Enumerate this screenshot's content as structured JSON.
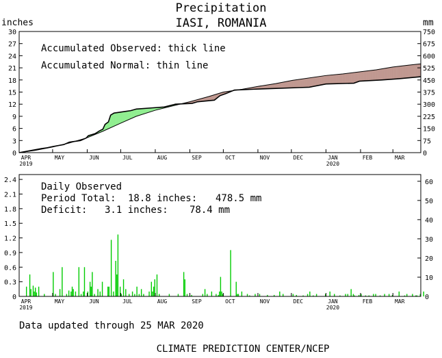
{
  "header": {
    "title": "Precipitation",
    "location": "IASI, ROMANIA",
    "unit_left": "inches",
    "unit_right": "mm"
  },
  "colors": {
    "surplus_fill": "#90ee90",
    "deficit_fill": "#c09890",
    "daily_bar": "#00cc00",
    "line": "#000000"
  },
  "footer": {
    "updated": "Data updated through 25 MAR 2020",
    "credit": "CLIMATE PREDICTION CENTER/NCEP"
  },
  "chart_data": [
    {
      "type": "area",
      "legend": [
        "Accumulated Observed: thick line",
        "Accumulated Normal: thin line"
      ],
      "ylim": [
        0,
        30
      ],
      "y_ticks": [
        "0",
        "3",
        "6",
        "9",
        "12",
        "15",
        "18",
        "21",
        "24",
        "27",
        "30"
      ],
      "y2lim": [
        0,
        750
      ],
      "y2_ticks": [
        "0",
        "75",
        "150",
        "225",
        "300",
        "375",
        "450",
        "525",
        "600",
        "675",
        "750"
      ],
      "x_months": [
        "APR",
        "MAY",
        "JUN",
        "JUL",
        "AUG",
        "SEP",
        "OCT",
        "NOV",
        "DEC",
        "JAN",
        "FEB",
        "MAR"
      ],
      "x_years": {
        "APR": "2019",
        "JAN": "2020"
      },
      "x_unit": "day index from APR 1 2019",
      "series": [
        {
          "name": "Accumulated Observed",
          "points": [
            [
              0,
              0.0
            ],
            [
              10,
              0.5
            ],
            [
              20,
              1.0
            ],
            [
              25,
              1.2
            ],
            [
              30,
              1.5
            ],
            [
              40,
              2.0
            ],
            [
              45,
              2.6
            ],
            [
              55,
              3.0
            ],
            [
              60,
              3.6
            ],
            [
              62,
              4.2
            ],
            [
              68,
              4.7
            ],
            [
              72,
              5.4
            ],
            [
              75,
              5.8
            ],
            [
              77,
              7.0
            ],
            [
              80,
              7.6
            ],
            [
              82,
              9.3
            ],
            [
              85,
              9.8
            ],
            [
              95,
              10.2
            ],
            [
              100,
              10.4
            ],
            [
              105,
              10.8
            ],
            [
              120,
              11.1
            ],
            [
              130,
              11.3
            ],
            [
              140,
              12.0
            ],
            [
              155,
              12.2
            ],
            [
              160,
              12.6
            ],
            [
              175,
              13.0
            ],
            [
              180,
              14.1
            ],
            [
              185,
              14.6
            ],
            [
              193,
              15.5
            ],
            [
              210,
              15.7
            ],
            [
              230,
              15.9
            ],
            [
              250,
              16.1
            ],
            [
              260,
              16.2
            ],
            [
              275,
              17.0
            ],
            [
              300,
              17.2
            ],
            [
              305,
              17.7
            ],
            [
              325,
              18.0
            ],
            [
              340,
              18.3
            ],
            [
              360,
              18.8
            ]
          ]
        },
        {
          "name": "Accumulated Normal",
          "points": [
            [
              0,
              0.0
            ],
            [
              15,
              0.6
            ],
            [
              30,
              1.4
            ],
            [
              45,
              2.4
            ],
            [
              60,
              3.6
            ],
            [
              75,
              5.3
            ],
            [
              91,
              7.3
            ],
            [
              105,
              9.0
            ],
            [
              122,
              10.5
            ],
            [
              135,
              11.4
            ],
            [
              153,
              12.6
            ],
            [
              170,
              13.9
            ],
            [
              183,
              15.0
            ],
            [
              200,
              15.7
            ],
            [
              214,
              16.4
            ],
            [
              230,
              17.1
            ],
            [
              245,
              17.9
            ],
            [
              275,
              19.1
            ],
            [
              290,
              19.5
            ],
            [
              305,
              20.0
            ],
            [
              320,
              20.5
            ],
            [
              335,
              21.2
            ],
            [
              350,
              21.7
            ],
            [
              360,
              22.0
            ]
          ]
        }
      ]
    },
    {
      "type": "bar",
      "series_label": "Daily Observed",
      "period_total": {
        "label": "Period Total:",
        "inches": "18.8 inches:",
        "mm": "478.5 mm"
      },
      "deficit": {
        "label": "Deficit:",
        "inches": "3.1 inches:",
        "mm": "78.4 mm"
      },
      "ylim": [
        0,
        2.5
      ],
      "y_ticks": [
        "0",
        "0.3",
        "0.6",
        "0.9",
        "1.2",
        "1.5",
        "1.8",
        "2.1",
        "2.4"
      ],
      "y2lim": [
        0,
        63.5
      ],
      "y2_ticks": [
        "0",
        "10",
        "20",
        "30",
        "40",
        "50",
        "60"
      ],
      "x_months": [
        "APR",
        "MAY",
        "JUN",
        "JUL",
        "AUG",
        "SEP",
        "OCT",
        "NOV",
        "DEC",
        "JAN",
        "FEB",
        "MAR"
      ],
      "x_years": {
        "APR": "2019",
        "JAN": "2020"
      },
      "x_unit": "day index from APR 1 2019",
      "values": [
        [
          6,
          0.2
        ],
        [
          9,
          0.45
        ],
        [
          10,
          0.15
        ],
        [
          12,
          0.22
        ],
        [
          13,
          0.1
        ],
        [
          14,
          0.18
        ],
        [
          15,
          0.08
        ],
        [
          17,
          0.2
        ],
        [
          22,
          0.05
        ],
        [
          30,
          0.5
        ],
        [
          32,
          0.05
        ],
        [
          36,
          0.15
        ],
        [
          38,
          0.6
        ],
        [
          42,
          0.05
        ],
        [
          44,
          0.12
        ],
        [
          46,
          0.1
        ],
        [
          47,
          0.2
        ],
        [
          48,
          0.15
        ],
        [
          50,
          0.1
        ],
        [
          53,
          0.6
        ],
        [
          55,
          0.05
        ],
        [
          57,
          0.1
        ],
        [
          58,
          0.6
        ],
        [
          61,
          0.1
        ],
        [
          63,
          0.3
        ],
        [
          64,
          0.2
        ],
        [
          65,
          0.5
        ],
        [
          67,
          0.05
        ],
        [
          70,
          0.15
        ],
        [
          72,
          0.1
        ],
        [
          74,
          0.3
        ],
        [
          79,
          0.2
        ],
        [
          80,
          0.2
        ],
        [
          82,
          1.16
        ],
        [
          84,
          0.1
        ],
        [
          86,
          0.73
        ],
        [
          87,
          0.45
        ],
        [
          88,
          1.27
        ],
        [
          90,
          0.2
        ],
        [
          91,
          0.05
        ],
        [
          93,
          0.35
        ],
        [
          95,
          0.15
        ],
        [
          98,
          0.05
        ],
        [
          101,
          0.1
        ],
        [
          103,
          0.05
        ],
        [
          105,
          0.2
        ],
        [
          107,
          0.05
        ],
        [
          109,
          0.15
        ],
        [
          111,
          0.05
        ],
        [
          116,
          0.1
        ],
        [
          118,
          0.3
        ],
        [
          119,
          0.1
        ],
        [
          120,
          0.2
        ],
        [
          121,
          0.35
        ],
        [
          123,
          0.45
        ],
        [
          125,
          0.05
        ],
        [
          134,
          0.05
        ],
        [
          142,
          0.05
        ],
        [
          147,
          0.5
        ],
        [
          148,
          0.35
        ],
        [
          150,
          0.05
        ],
        [
          154,
          0.03
        ],
        [
          164,
          0.05
        ],
        [
          166,
          0.15
        ],
        [
          168,
          0.05
        ],
        [
          172,
          0.1
        ],
        [
          176,
          0.05
        ],
        [
          178,
          0.03
        ],
        [
          179,
          0.1
        ],
        [
          180,
          0.4
        ],
        [
          181,
          0.1
        ],
        [
          182,
          0.05
        ],
        [
          189,
          0.95
        ],
        [
          194,
          0.3
        ],
        [
          195,
          0.05
        ],
        [
          196,
          0.05
        ],
        [
          199,
          0.1
        ],
        [
          204,
          0.05
        ],
        [
          206,
          0.02
        ],
        [
          211,
          0.05
        ],
        [
          215,
          0.05
        ],
        [
          222,
          0.03
        ],
        [
          228,
          0.03
        ],
        [
          233,
          0.1
        ],
        [
          236,
          0.05
        ],
        [
          245,
          0.05
        ],
        [
          248,
          0.03
        ],
        [
          254,
          0.02
        ],
        [
          258,
          0.05
        ],
        [
          260,
          0.1
        ],
        [
          263,
          0.02
        ],
        [
          266,
          0.05
        ],
        [
          274,
          0.05
        ],
        [
          278,
          0.1
        ],
        [
          282,
          0.05
        ],
        [
          287,
          0.02
        ],
        [
          292,
          0.05
        ],
        [
          294,
          0.05
        ],
        [
          297,
          0.15
        ],
        [
          299,
          0.05
        ],
        [
          300,
          0.02
        ],
        [
          304,
          0.03
        ],
        [
          306,
          0.05
        ],
        [
          310,
          0.02
        ],
        [
          313,
          0.02
        ],
        [
          317,
          0.05
        ],
        [
          319,
          0.05
        ],
        [
          323,
          0.02
        ],
        [
          327,
          0.05
        ],
        [
          331,
          0.05
        ],
        [
          334,
          0.03
        ],
        [
          340,
          0.1
        ],
        [
          345,
          0.02
        ],
        [
          347,
          0.05
        ],
        [
          352,
          0.05
        ],
        [
          355,
          0.02
        ],
        [
          356,
          0.02
        ],
        [
          359,
          0.05
        ],
        [
          362,
          0.1
        ]
      ]
    }
  ]
}
